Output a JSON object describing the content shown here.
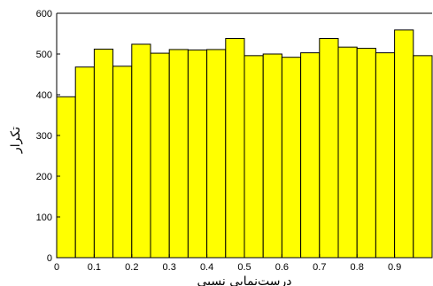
{
  "chart_data": {
    "type": "bar",
    "title": "",
    "xlabel": "درست‌نمایی نسبی",
    "ylabel": "تکرار",
    "xlim": [
      0,
      1
    ],
    "ylim": [
      0,
      600
    ],
    "xticks": [
      0,
      0.1,
      0.2,
      0.3,
      0.4,
      0.5,
      0.6,
      0.7,
      0.8,
      0.9
    ],
    "xtick_labels": [
      "0",
      "0.1",
      "0.2",
      "0.3",
      "0.4",
      "0.5",
      "0.6",
      "0.7",
      "0.8",
      "0.9"
    ],
    "yticks": [
      0,
      100,
      200,
      300,
      400,
      500,
      600
    ],
    "ytick_labels": [
      "0",
      "100",
      "200",
      "300",
      "400",
      "500",
      "600"
    ],
    "bin_width": 0.05,
    "bin_starts": [
      0,
      0.05,
      0.1,
      0.15,
      0.2,
      0.25,
      0.3,
      0.35,
      0.4,
      0.45,
      0.5,
      0.55,
      0.6,
      0.65,
      0.7,
      0.75,
      0.8,
      0.85,
      0.9,
      0.95
    ],
    "values": [
      395,
      468,
      512,
      470,
      524,
      502,
      511,
      510,
      511,
      538,
      496,
      500,
      492,
      503,
      538,
      517,
      514,
      503,
      559,
      496
    ],
    "bar_color": "#ffff00",
    "edge_color": "#000000",
    "grid": false
  }
}
